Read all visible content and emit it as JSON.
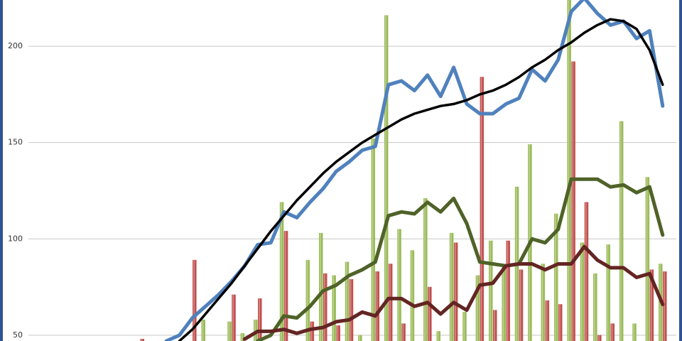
{
  "chart_data": {
    "type": "combo",
    "categories": [
      null,
      null,
      null,
      null,
      null,
      null,
      null,
      null,
      null,
      null,
      null,
      null,
      null,
      null,
      null,
      null,
      null,
      null,
      null,
      null,
      null,
      null,
      null,
      null,
      null,
      null,
      null,
      null,
      null,
      null,
      null,
      null,
      null,
      null,
      null,
      null,
      null,
      null,
      null,
      null,
      null,
      null,
      null,
      null,
      null,
      null,
      null,
      null,
      null
    ],
    "ylim": [
      47,
      224
    ],
    "yticks": [
      50,
      100,
      150,
      200
    ],
    "grid": true,
    "series": [
      {
        "type": "bar",
        "color": "#9bbb59",
        "values": [
          null,
          null,
          null,
          null,
          null,
          null,
          null,
          null,
          null,
          null,
          null,
          null,
          null,
          58,
          null,
          57,
          51,
          58,
          null,
          119,
          null,
          89,
          103,
          81,
          88,
          50,
          152,
          216,
          105,
          94,
          121,
          52,
          103,
          62,
          81,
          99,
          86,
          127,
          149,
          87,
          113,
          226,
          98,
          82,
          97,
          161,
          56,
          132,
          87
        ]
      },
      {
        "type": "bar",
        "color": "#c0504d",
        "values": [
          null,
          null,
          null,
          null,
          null,
          null,
          null,
          null,
          48,
          null,
          null,
          null,
          89,
          null,
          null,
          71,
          null,
          69,
          null,
          104,
          null,
          57,
          82,
          55,
          79,
          null,
          83,
          87,
          56,
          null,
          75,
          null,
          98,
          null,
          184,
          63,
          99,
          84,
          null,
          68,
          66,
          192,
          119,
          50,
          56,
          null,
          null,
          84,
          83
        ]
      },
      {
        "type": "line",
        "color": "#4f81bd",
        "values": [
          null,
          null,
          null,
          null,
          null,
          null,
          null,
          null,
          null,
          null,
          47,
          50,
          59,
          65,
          71,
          78,
          86,
          97,
          98,
          114,
          111,
          119,
          126,
          135,
          140,
          146,
          148,
          180,
          182,
          177,
          185,
          174,
          189,
          170,
          165,
          165,
          170,
          173,
          188,
          182,
          193,
          218,
          225,
          217,
          211,
          213,
          204,
          208,
          169
        ]
      },
      {
        "type": "line",
        "color": "#4f6228",
        "values": [
          null,
          null,
          null,
          null,
          null,
          null,
          null,
          null,
          null,
          null,
          null,
          null,
          null,
          null,
          null,
          null,
          null,
          47,
          50,
          60,
          59,
          65,
          73,
          76,
          81,
          84,
          88,
          112,
          114,
          113,
          119,
          114,
          121,
          108,
          88,
          87,
          86,
          87,
          100,
          98,
          105,
          131,
          131,
          131,
          127,
          128,
          124,
          127,
          102
        ]
      },
      {
        "type": "line",
        "color": "#632523",
        "values": [
          null,
          null,
          null,
          null,
          null,
          null,
          null,
          null,
          null,
          null,
          null,
          null,
          null,
          null,
          null,
          null,
          48,
          52,
          52,
          53,
          51,
          53,
          54,
          57,
          58,
          62,
          60,
          69,
          69,
          65,
          67,
          61,
          67,
          63,
          76,
          77,
          86,
          87,
          87,
          84,
          87,
          87,
          96,
          89,
          85,
          85,
          80,
          82,
          66
        ]
      },
      {
        "type": "line",
        "color": "#000000",
        "values": [
          null,
          null,
          null,
          null,
          null,
          null,
          null,
          null,
          null,
          null,
          null,
          47,
          53,
          61,
          69,
          77,
          86,
          95,
          104,
          112,
          120,
          127,
          134,
          140,
          145,
          150,
          154,
          158,
          162,
          165,
          167,
          169,
          170,
          172,
          175,
          177,
          180,
          184,
          189,
          193,
          198,
          202,
          207,
          211,
          214,
          213,
          209,
          198,
          180
        ]
      }
    ]
  }
}
